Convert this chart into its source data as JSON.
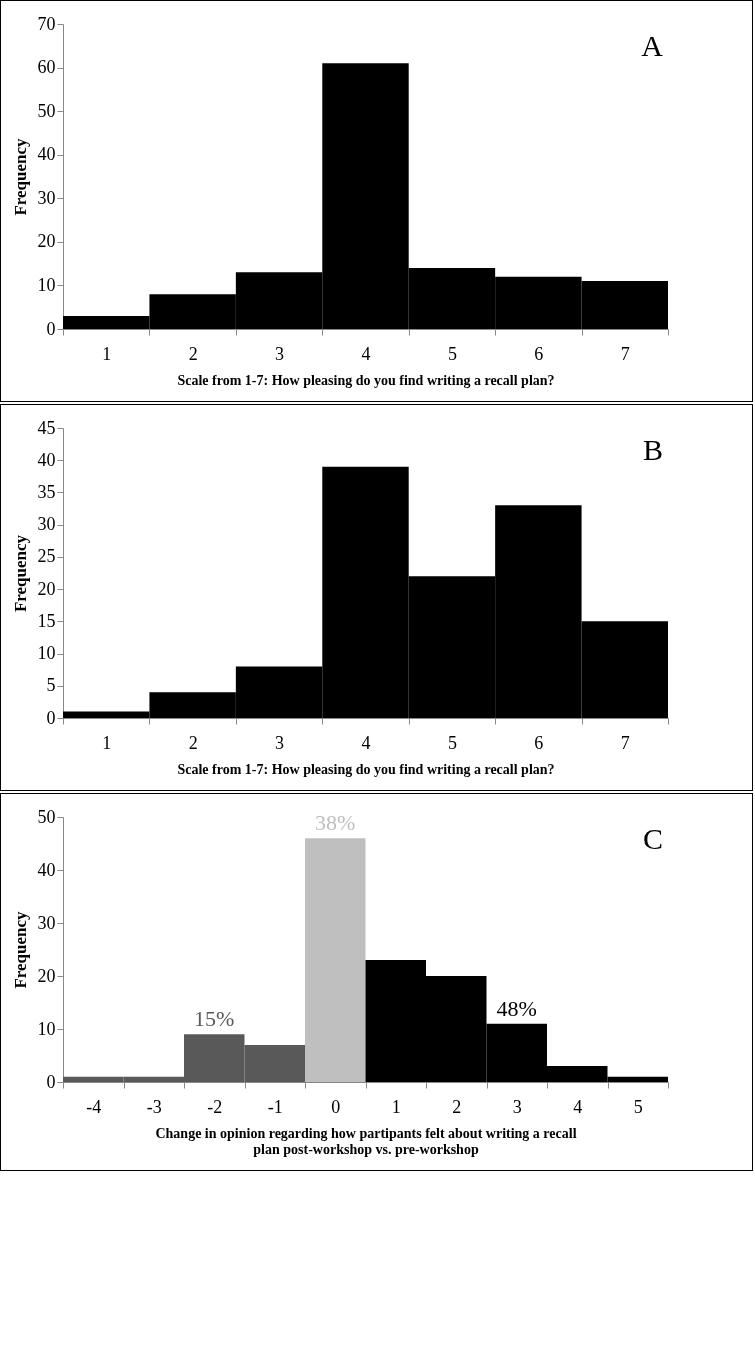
{
  "chart_data": [
    {
      "type": "bar",
      "categories": [
        "1",
        "2",
        "3",
        "4",
        "5",
        "6",
        "7"
      ],
      "values": [
        3,
        8,
        13,
        61,
        14,
        12,
        11
      ],
      "color": "#000000",
      "xlabel": "Scale from 1-7: How pleasing do you find writing a recall plan?",
      "ylabel": "Frequency",
      "ylim": [
        0,
        70
      ],
      "yticks": [
        0,
        10,
        20,
        30,
        40,
        50,
        60,
        70
      ],
      "annotations": [
        "A"
      ]
    },
    {
      "type": "bar",
      "categories": [
        "1",
        "2",
        "3",
        "4",
        "5",
        "6",
        "7"
      ],
      "values": [
        1,
        4,
        8,
        39,
        22,
        33,
        15
      ],
      "color": "#000000",
      "xlabel": "Scale from 1-7: How pleasing do you find writing a recall plan?",
      "ylabel": "Frequency",
      "ylim": [
        0,
        45
      ],
      "yticks": [
        0,
        5,
        10,
        15,
        20,
        25,
        30,
        35,
        40,
        45
      ],
      "annotations": [
        "B"
      ]
    },
    {
      "type": "bar",
      "categories": [
        "-4",
        "-3",
        "-2",
        "-1",
        "0",
        "1",
        "2",
        "3",
        "4",
        "5"
      ],
      "values": [
        1,
        1,
        9,
        7,
        46,
        23,
        20,
        11,
        3,
        1
      ],
      "colors": [
        "#595959",
        "#595959",
        "#595959",
        "#595959",
        "#bfbfbf",
        "#000000",
        "#000000",
        "#000000",
        "#000000",
        "#000000"
      ],
      "xlabel": "Change in opinion regarding how partipants felt about writing a recall plan post-workshop vs. pre-workshop",
      "ylabel": "Frequency",
      "ylim": [
        0,
        50
      ],
      "yticks": [
        0,
        10,
        20,
        30,
        40,
        50
      ],
      "annotations": [
        "C",
        {
          "text": "15%",
          "x": "-2",
          "y": 9
        },
        {
          "text": "38%",
          "x": "0",
          "y": 46
        },
        {
          "text": "48%",
          "x": "3",
          "y": 11
        }
      ]
    }
  ]
}
